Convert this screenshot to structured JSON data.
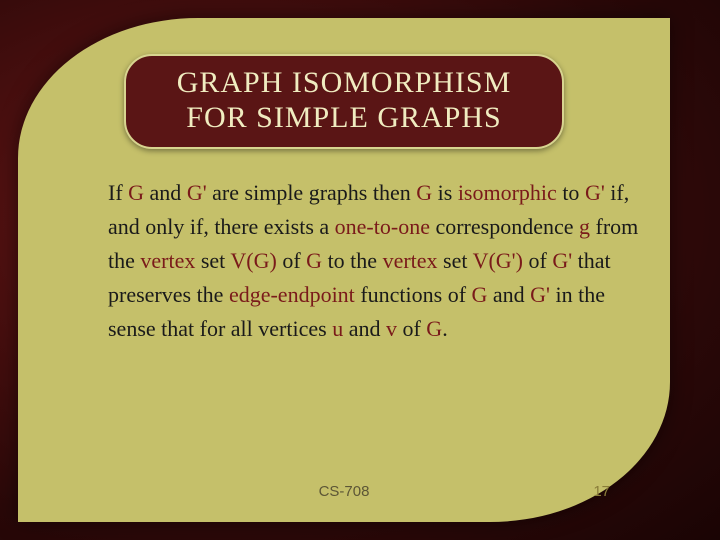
{
  "slide": {
    "title_line1": "GRAPH ISOMORPHISM",
    "title_line2": "FOR SIMPLE GRAPHS",
    "title_color": "#f0ecc0",
    "title_bg": "#5a1515",
    "title_border": "#d8d48f",
    "title_fontsize": 30,
    "body_fontsize": 22,
    "body_color": "#1a1a1a",
    "highlight_color": "#7a1a1a",
    "leaf_bg": "#c5c06a",
    "slide_bg_inner": "#6b1818",
    "slide_bg_outer": "#1a0404",
    "text": {
      "t1": "If ",
      "g1": "G",
      "t2": " and ",
      "g2": "G'",
      "t3": " are simple graphs then ",
      "g3": "G",
      "t4": " is ",
      "iso": "isomorphic",
      "t5": " to ",
      "g4": "G'",
      "t6": " if, and only if, there exists a ",
      "oto": "one-to-one",
      "t7": " correspondence ",
      "gfn": "g",
      "t8": " from the ",
      "vx1": "vertex",
      "t9": " set ",
      "vg": "V(G)",
      "t10": " of ",
      "g5": "G",
      "t11": " to the ",
      "vx2": "vertex",
      "t12": " set ",
      "vgp": "V(G')",
      "t13": " of ",
      "g6": "G'",
      "t14": " that preserves the ",
      "ee": "edge-endpoint",
      "t15": " functions of ",
      "g7": "G",
      "t16": " and ",
      "g8": "G'",
      "t17": " in the sense that for all vertices ",
      "u": "u",
      "t18": " and ",
      "v": "v",
      "t19": " of ",
      "g9": "G",
      "t20": "."
    },
    "footer_course": "CS-708",
    "footer_page": "17"
  }
}
